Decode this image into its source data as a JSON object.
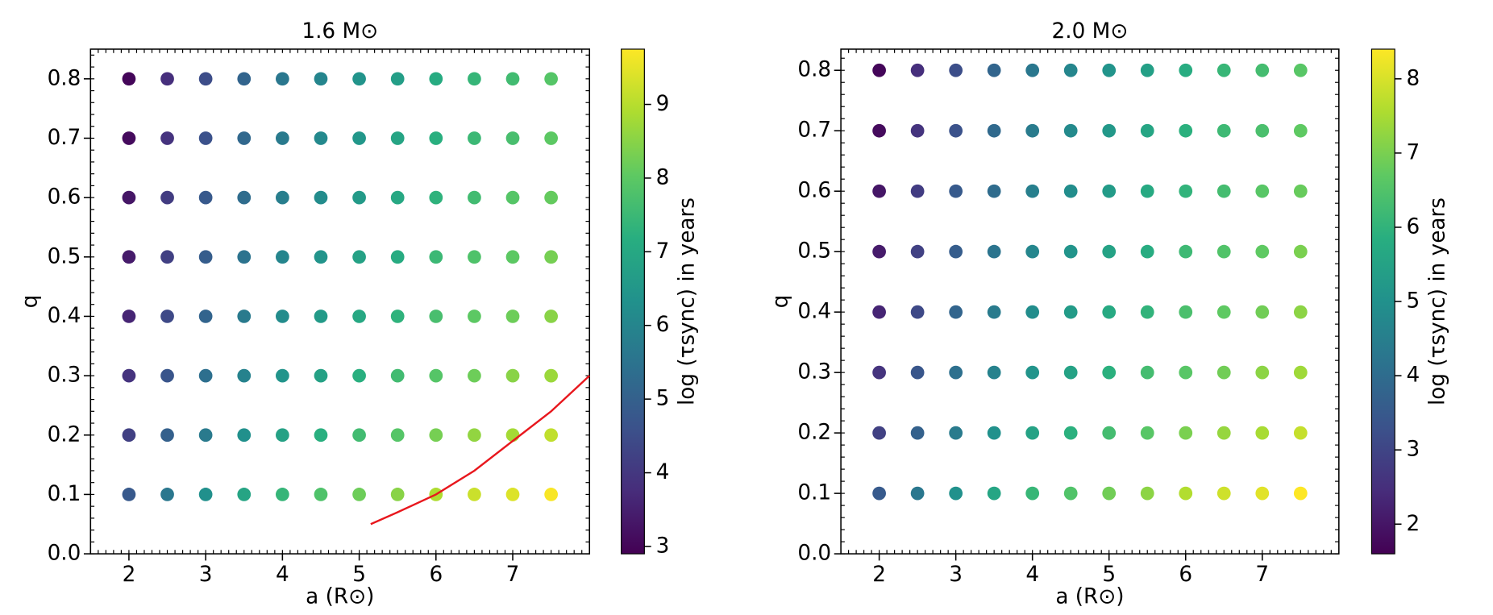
{
  "chart_data": [
    {
      "type": "scatter",
      "title": "1.6 M⊙",
      "xlabel": "a (R⊙)",
      "ylabel": "q",
      "colorbar_label": "log (τsync) in years",
      "colormap": "viridis",
      "clim": [
        2.9,
        9.75
      ],
      "cticks": [
        3,
        4,
        5,
        6,
        7,
        8,
        9
      ],
      "xlim": [
        1.5,
        8.0
      ],
      "ylim": [
        0,
        0.85
      ],
      "xticks": [
        2,
        3,
        4,
        5,
        6,
        7
      ],
      "yticks": [
        {
          "value": 0,
          "label": "0.0"
        },
        0.1,
        0.2,
        0.3,
        0.4,
        0.5,
        0.6,
        0.7,
        0.8
      ],
      "xminor": 0.1,
      "yminor": 0.02,
      "x": [
        2,
        2.5,
        3,
        3.5,
        4,
        4.5,
        5,
        5.5,
        6,
        6.5,
        7,
        7.5
      ],
      "series": [
        {
          "y": 0.8,
          "values": [
            3.0,
            3.8,
            4.5,
            5.1,
            5.6,
            6.0,
            6.4,
            6.7,
            7.1,
            7.4,
            7.6,
            7.9
          ]
        },
        {
          "y": 0.7,
          "values": [
            3.1,
            3.9,
            4.6,
            5.2,
            5.7,
            6.1,
            6.5,
            6.9,
            7.2,
            7.5,
            7.7,
            8.0
          ]
        },
        {
          "y": 0.6,
          "values": [
            3.3,
            4.1,
            4.8,
            5.3,
            5.8,
            6.2,
            6.6,
            7.0,
            7.3,
            7.6,
            7.9,
            8.1
          ]
        },
        {
          "y": 0.5,
          "values": [
            3.4,
            4.2,
            4.9,
            5.5,
            6.0,
            6.4,
            6.8,
            7.1,
            7.5,
            7.8,
            8.0,
            8.3
          ]
        },
        {
          "y": 0.4,
          "values": [
            3.6,
            4.4,
            5.1,
            5.7,
            6.2,
            6.6,
            7.0,
            7.3,
            7.7,
            8.0,
            8.2,
            8.5
          ]
        },
        {
          "y": 0.3,
          "values": [
            3.9,
            4.7,
            5.4,
            5.9,
            6.4,
            6.8,
            7.2,
            7.6,
            7.9,
            8.2,
            8.5,
            8.7
          ]
        },
        {
          "y": 0.2,
          "values": [
            4.2,
            5.0,
            5.7,
            6.3,
            6.8,
            7.2,
            7.6,
            7.9,
            8.3,
            8.6,
            8.8,
            9.1
          ]
        },
        {
          "y": 0.1,
          "values": [
            4.8,
            5.6,
            6.3,
            6.9,
            7.4,
            7.8,
            8.2,
            8.5,
            8.9,
            9.2,
            9.4,
            9.7
          ]
        }
      ],
      "lines": [
        {
          "color": "#e8171d",
          "x": [
            5.15,
            5.5,
            6,
            6.5,
            7,
            7.5,
            8
          ],
          "y": [
            0.05,
            0.07,
            0.1,
            0.14,
            0.19,
            0.24,
            0.3
          ]
        }
      ]
    },
    {
      "type": "scatter",
      "title": "2.0 M⊙",
      "xlabel": "a (R⊙)",
      "ylabel": "q",
      "colorbar_label": "log (τsync) in years",
      "colormap": "viridis",
      "clim": [
        1.6,
        8.4
      ],
      "cticks": [
        2,
        3,
        4,
        5,
        6,
        7,
        8
      ],
      "xlim": [
        1.5,
        8.0
      ],
      "ylim": [
        0,
        0.835
      ],
      "xticks": [
        2,
        3,
        4,
        5,
        6,
        7
      ],
      "yticks": [
        {
          "value": 0,
          "label": "0.0"
        },
        0.1,
        0.2,
        0.3,
        0.4,
        0.5,
        0.6,
        0.7,
        0.8
      ],
      "xminor": 0.1,
      "yminor": 0.02,
      "x": [
        2,
        2.5,
        3,
        3.5,
        4,
        4.5,
        5,
        5.5,
        6,
        6.5,
        7,
        7.5
      ],
      "series": [
        {
          "y": 0.8,
          "values": [
            1.7,
            2.5,
            3.2,
            3.8,
            4.3,
            4.7,
            5.1,
            5.4,
            5.8,
            6.1,
            6.3,
            6.6
          ]
        },
        {
          "y": 0.7,
          "values": [
            1.8,
            2.6,
            3.3,
            3.9,
            4.4,
            4.8,
            5.2,
            5.6,
            5.9,
            6.2,
            6.4,
            6.7
          ]
        },
        {
          "y": 0.6,
          "values": [
            2.0,
            2.8,
            3.5,
            4.0,
            4.5,
            4.9,
            5.3,
            5.7,
            6.0,
            6.3,
            6.6,
            6.8
          ]
        },
        {
          "y": 0.5,
          "values": [
            2.1,
            2.9,
            3.6,
            4.2,
            4.7,
            5.1,
            5.5,
            5.8,
            6.2,
            6.5,
            6.7,
            7.0
          ]
        },
        {
          "y": 0.4,
          "values": [
            2.3,
            3.1,
            3.8,
            4.4,
            4.9,
            5.3,
            5.7,
            6.0,
            6.4,
            6.7,
            6.9,
            7.2
          ]
        },
        {
          "y": 0.3,
          "values": [
            2.6,
            3.4,
            4.1,
            4.6,
            5.1,
            5.5,
            5.9,
            6.3,
            6.6,
            6.9,
            7.2,
            7.4
          ]
        },
        {
          "y": 0.2,
          "values": [
            2.9,
            3.7,
            4.4,
            5.0,
            5.5,
            5.9,
            6.3,
            6.6,
            7.0,
            7.3,
            7.5,
            7.8
          ]
        },
        {
          "y": 0.1,
          "values": [
            3.5,
            4.3,
            5.0,
            5.6,
            6.1,
            6.5,
            6.9,
            7.2,
            7.6,
            7.9,
            8.1,
            8.4
          ]
        }
      ]
    }
  ]
}
